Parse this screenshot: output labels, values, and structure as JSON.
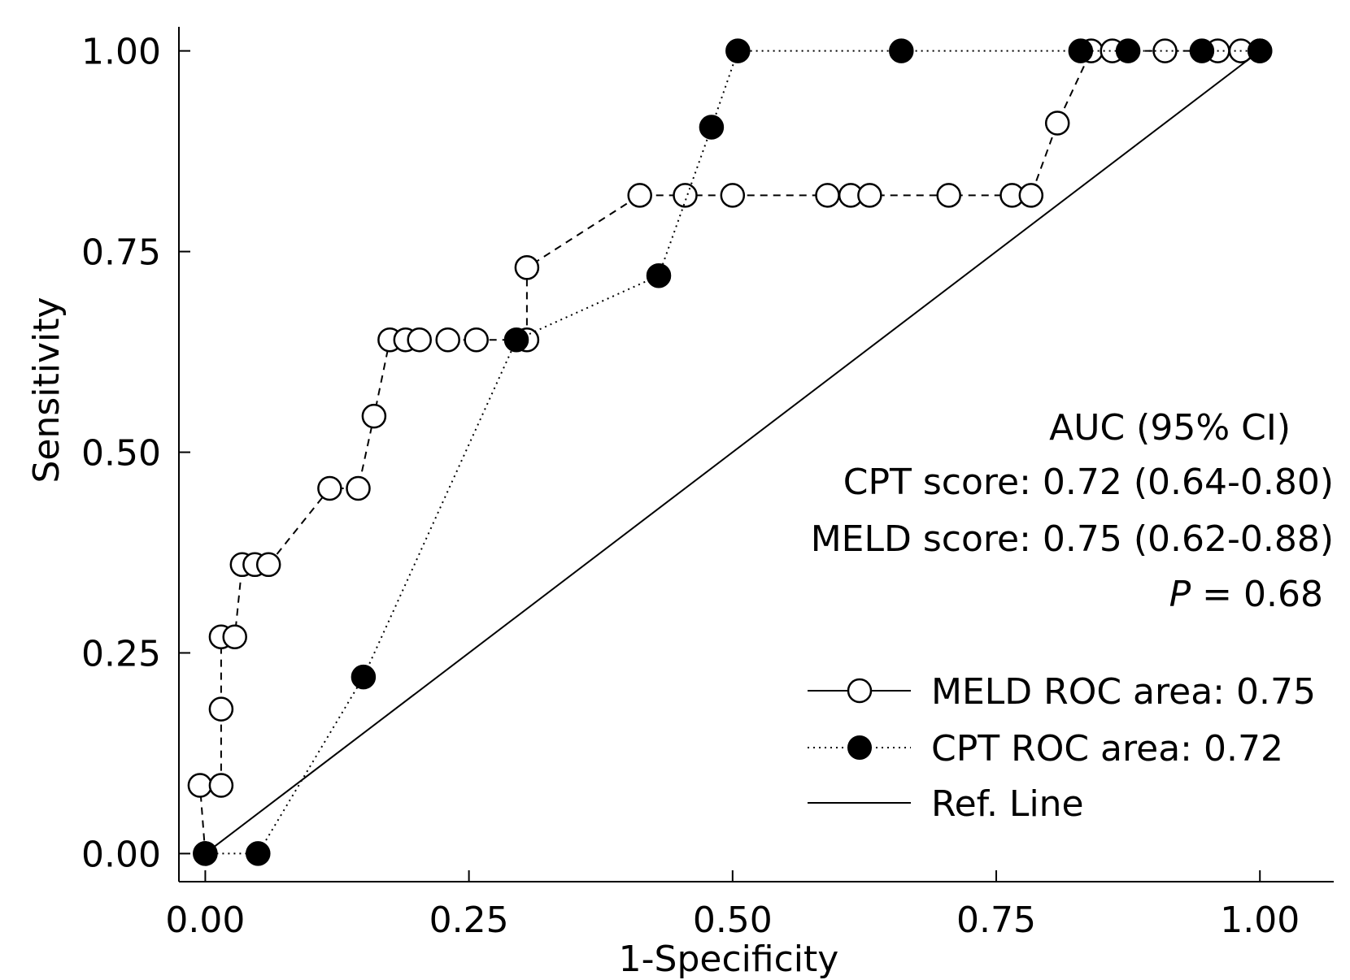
{
  "chart_data": {
    "type": "line",
    "xlabel": "1-Specificity",
    "ylabel": "Sensitivity",
    "xlim": [
      -0.025,
      1.07
    ],
    "ylim": [
      -0.035,
      1.03
    ],
    "x_ticks": [
      "0.00",
      "0.25",
      "0.50",
      "0.75",
      "1.00"
    ],
    "y_ticks": [
      "0.00",
      "0.25",
      "0.50",
      "0.75",
      "1.00"
    ],
    "x_tick_values": [
      0,
      0.25,
      0.5,
      0.75,
      1.0
    ],
    "y_tick_values": [
      0,
      0.25,
      0.5,
      0.75,
      1.0
    ],
    "grid": false,
    "legend_position": "bottom-right",
    "stats": {
      "heading": "AUC (95% CI)",
      "line1": "CPT score: 0.72 (0.64-0.80)",
      "line2": "MELD score: 0.75 (0.62-0.88)",
      "p_symbol": "P",
      "p_rest": " = 0.68"
    },
    "series": [
      {
        "name": "MELD ROC area: 0.75",
        "marker": "open-circle",
        "line_style": "dashed",
        "points": [
          {
            "x": 0.0,
            "y": 0.0
          },
          {
            "x": -0.005,
            "y": 0.085
          },
          {
            "x": 0.015,
            "y": 0.085
          },
          {
            "x": 0.015,
            "y": 0.18
          },
          {
            "x": 0.015,
            "y": 0.27
          },
          {
            "x": 0.028,
            "y": 0.27
          },
          {
            "x": 0.035,
            "y": 0.36
          },
          {
            "x": 0.047,
            "y": 0.36
          },
          {
            "x": 0.06,
            "y": 0.36
          },
          {
            "x": 0.118,
            "y": 0.455
          },
          {
            "x": 0.145,
            "y": 0.455
          },
          {
            "x": 0.16,
            "y": 0.545
          },
          {
            "x": 0.175,
            "y": 0.64
          },
          {
            "x": 0.19,
            "y": 0.64
          },
          {
            "x": 0.203,
            "y": 0.64
          },
          {
            "x": 0.23,
            "y": 0.64
          },
          {
            "x": 0.257,
            "y": 0.64
          },
          {
            "x": 0.305,
            "y": 0.64
          },
          {
            "x": 0.305,
            "y": 0.73
          },
          {
            "x": 0.412,
            "y": 0.82
          },
          {
            "x": 0.455,
            "y": 0.82
          },
          {
            "x": 0.5,
            "y": 0.82
          },
          {
            "x": 0.59,
            "y": 0.82
          },
          {
            "x": 0.612,
            "y": 0.82
          },
          {
            "x": 0.63,
            "y": 0.82
          },
          {
            "x": 0.705,
            "y": 0.82
          },
          {
            "x": 0.765,
            "y": 0.82
          },
          {
            "x": 0.783,
            "y": 0.82
          },
          {
            "x": 0.808,
            "y": 0.91
          },
          {
            "x": 0.84,
            "y": 1.0
          },
          {
            "x": 0.86,
            "y": 1.0
          },
          {
            "x": 0.91,
            "y": 1.0
          },
          {
            "x": 0.96,
            "y": 1.0
          },
          {
            "x": 0.982,
            "y": 1.0
          },
          {
            "x": 1.0,
            "y": 1.0
          }
        ]
      },
      {
        "name": "CPT ROC area: 0.72",
        "marker": "filled-circle",
        "line_style": "dotted",
        "points": [
          {
            "x": 0.0,
            "y": 0.0
          },
          {
            "x": 0.05,
            "y": 0.0
          },
          {
            "x": 0.15,
            "y": 0.22
          },
          {
            "x": 0.295,
            "y": 0.64
          },
          {
            "x": 0.43,
            "y": 0.72
          },
          {
            "x": 0.48,
            "y": 0.905
          },
          {
            "x": 0.505,
            "y": 1.0
          },
          {
            "x": 0.66,
            "y": 1.0
          },
          {
            "x": 0.83,
            "y": 1.0
          },
          {
            "x": 0.875,
            "y": 1.0
          },
          {
            "x": 0.945,
            "y": 1.0
          },
          {
            "x": 1.0,
            "y": 1.0
          }
        ]
      },
      {
        "name": "Ref. Line",
        "marker": "none",
        "line_style": "solid",
        "points": [
          {
            "x": 0.0,
            "y": 0.0
          },
          {
            "x": 1.0,
            "y": 1.0
          }
        ]
      }
    ]
  }
}
